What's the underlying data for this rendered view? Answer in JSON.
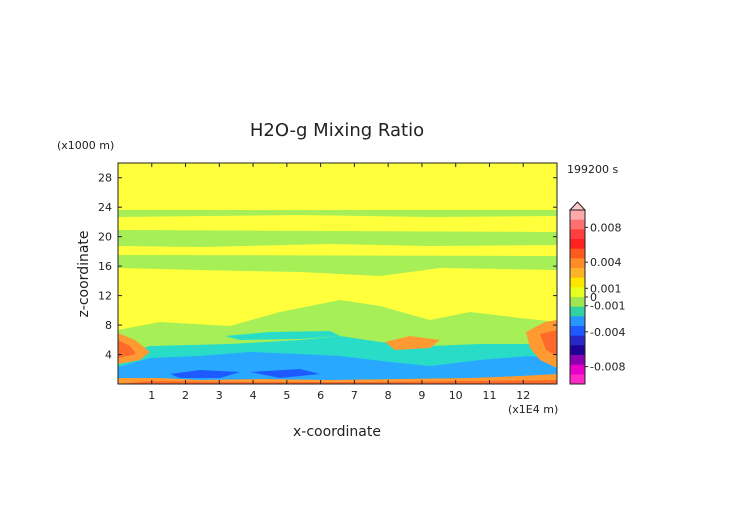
{
  "chart_data": {
    "type": "heatmap",
    "title": "H2O-g Mixing Ratio",
    "xlabel": "x-coordinate",
    "ylabel": "z-coordinate",
    "x_unit_label": "(x1E4 m)",
    "y_unit_label": "(x1000 m)",
    "time_label": "199200 s",
    "xlim": [
      0,
      13
    ],
    "ylim": [
      0,
      30
    ],
    "x_ticks": [
      "1",
      "2",
      "3",
      "4",
      "5",
      "6",
      "7",
      "8",
      "9",
      "10",
      "11",
      "12"
    ],
    "x_tick_values": [
      1,
      2,
      3,
      4,
      5,
      6,
      7,
      8,
      9,
      10,
      11,
      12
    ],
    "y_ticks": [
      "4",
      "8",
      "12",
      "16",
      "20",
      "24",
      "28"
    ],
    "y_tick_values": [
      4,
      8,
      12,
      16,
      20,
      24,
      28
    ],
    "colorbar": {
      "tick_labels": [
        "0.008",
        "0.004",
        "0.001",
        "0",
        "-0.001",
        "-0.004",
        "-0.008"
      ],
      "tick_values": [
        0.008,
        0.004,
        0.001,
        0,
        -0.001,
        -0.004,
        -0.008
      ],
      "range": [
        -0.01,
        0.01
      ],
      "colors": [
        "#ffaaaa",
        "#ff7070",
        "#ff4040",
        "#ff2020",
        "#ff5a1e",
        "#ff8c28",
        "#ffb428",
        "#ffe600",
        "#e6ff1e",
        "#a0e650",
        "#32d2a0",
        "#2896ff",
        "#1e5aff",
        "#2828c8",
        "#1e0096",
        "#8c00b4",
        "#e600c8",
        "#ff28c8"
      ]
    },
    "colors": {
      "background_field": "#ffff3c",
      "band_green": "#a6ef56",
      "band_blue": "#28a8ff",
      "band_cyan": "#28dcc8",
      "band_orange": "#ff9a32",
      "band_red": "#ff6a2a"
    }
  }
}
